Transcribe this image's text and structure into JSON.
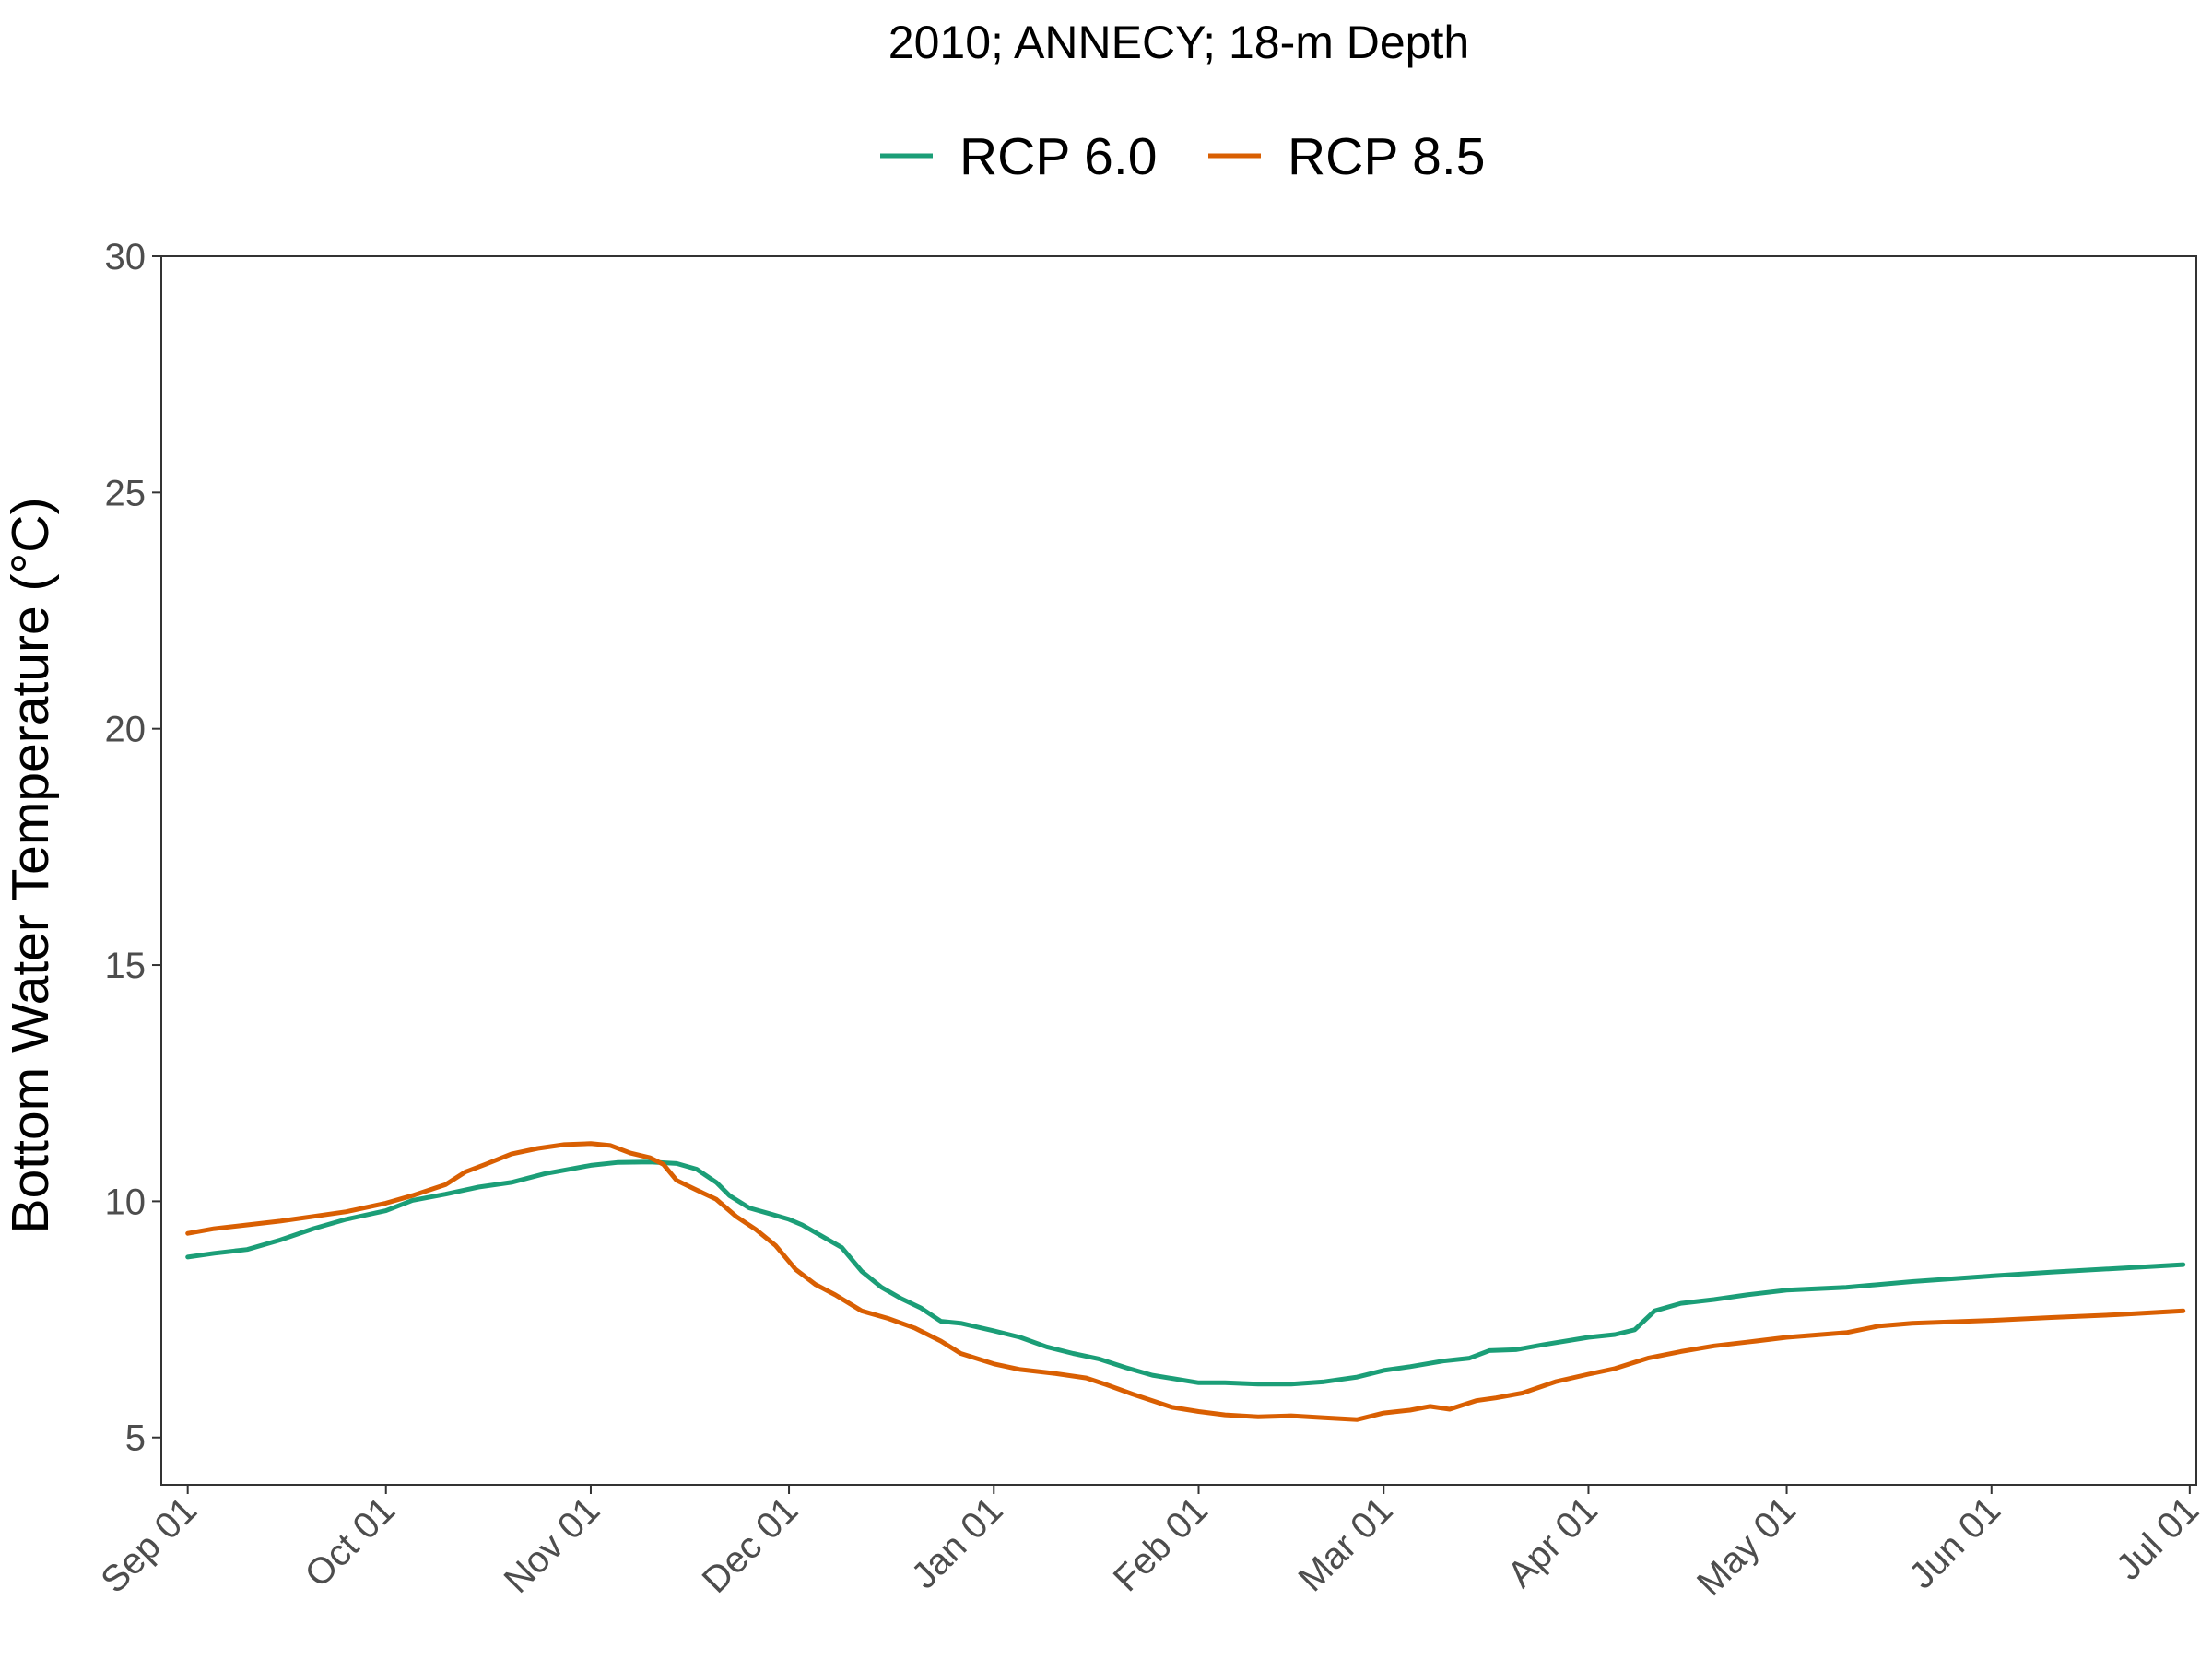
{
  "chart_data": {
    "type": "line",
    "title": "2010; ANNECY; 18-m Depth",
    "xlabel": "",
    "ylabel": "Bottom Water Temperature (°C)",
    "ylim": [
      4,
      30
    ],
    "xlim": [
      "2010-08-28",
      "2011-07-02"
    ],
    "y_ticks": [
      5,
      10,
      15,
      20,
      25,
      30
    ],
    "x_ticks": [
      {
        "date": "2010-09-01",
        "label": "Sep 01"
      },
      {
        "date": "2010-10-01",
        "label": "Oct 01"
      },
      {
        "date": "2010-11-01",
        "label": "Nov 01"
      },
      {
        "date": "2010-12-01",
        "label": "Dec 01"
      },
      {
        "date": "2011-01-01",
        "label": "Jan 01"
      },
      {
        "date": "2011-02-01",
        "label": "Feb 01"
      },
      {
        "date": "2011-03-01",
        "label": "Mar 01"
      },
      {
        "date": "2011-04-01",
        "label": "Apr 01"
      },
      {
        "date": "2011-05-01",
        "label": "May 01"
      },
      {
        "date": "2011-06-01",
        "label": "Jun 01"
      },
      {
        "date": "2011-07-01",
        "label": "Jul 01"
      }
    ],
    "grid": false,
    "legend_position": "top",
    "series": [
      {
        "name": "RCP 6.0",
        "color": "#1b9e77",
        "points": [
          [
            "2010-09-01",
            8.82
          ],
          [
            "2010-09-05",
            8.9
          ],
          [
            "2010-09-10",
            8.98
          ],
          [
            "2010-09-15",
            9.18
          ],
          [
            "2010-09-20",
            9.42
          ],
          [
            "2010-09-25",
            9.62
          ],
          [
            "2010-10-01",
            9.8
          ],
          [
            "2010-10-05",
            10.02
          ],
          [
            "2010-10-10",
            10.15
          ],
          [
            "2010-10-15",
            10.3
          ],
          [
            "2010-10-20",
            10.4
          ],
          [
            "2010-10-25",
            10.58
          ],
          [
            "2010-11-01",
            10.76
          ],
          [
            "2010-11-05",
            10.82
          ],
          [
            "2010-11-10",
            10.83
          ],
          [
            "2010-11-14",
            10.8
          ],
          [
            "2010-11-17",
            10.68
          ],
          [
            "2010-11-20",
            10.4
          ],
          [
            "2010-11-22",
            10.12
          ],
          [
            "2010-11-25",
            9.86
          ],
          [
            "2010-11-28",
            9.74
          ],
          [
            "2010-12-01",
            9.62
          ],
          [
            "2010-12-03",
            9.5
          ],
          [
            "2010-12-06",
            9.26
          ],
          [
            "2010-12-09",
            9.02
          ],
          [
            "2010-12-12",
            8.52
          ],
          [
            "2010-12-15",
            8.18
          ],
          [
            "2010-12-18",
            7.94
          ],
          [
            "2010-12-21",
            7.74
          ],
          [
            "2010-12-24",
            7.46
          ],
          [
            "2010-12-27",
            7.42
          ],
          [
            "2011-01-01",
            7.26
          ],
          [
            "2011-01-05",
            7.12
          ],
          [
            "2011-01-09",
            6.92
          ],
          [
            "2011-01-13",
            6.78
          ],
          [
            "2011-01-17",
            6.66
          ],
          [
            "2011-01-21",
            6.48
          ],
          [
            "2011-01-25",
            6.32
          ],
          [
            "2011-02-01",
            6.16
          ],
          [
            "2011-02-05",
            6.16
          ],
          [
            "2011-02-10",
            6.13
          ],
          [
            "2011-02-15",
            6.13
          ],
          [
            "2011-02-20",
            6.18
          ],
          [
            "2011-02-25",
            6.28
          ],
          [
            "2011-03-01",
            6.42
          ],
          [
            "2011-03-05",
            6.5
          ],
          [
            "2011-03-10",
            6.62
          ],
          [
            "2011-03-14",
            6.68
          ],
          [
            "2011-03-17",
            6.84
          ],
          [
            "2011-03-21",
            6.86
          ],
          [
            "2011-03-25",
            6.96
          ],
          [
            "2011-04-01",
            7.12
          ],
          [
            "2011-04-05",
            7.18
          ],
          [
            "2011-04-08",
            7.28
          ],
          [
            "2011-04-11",
            7.68
          ],
          [
            "2011-04-15",
            7.84
          ],
          [
            "2011-04-20",
            7.92
          ],
          [
            "2011-04-25",
            8.02
          ],
          [
            "2011-05-01",
            8.12
          ],
          [
            "2011-05-10",
            8.18
          ],
          [
            "2011-05-20",
            8.3
          ],
          [
            "2011-06-01",
            8.42
          ],
          [
            "2011-06-10",
            8.5
          ],
          [
            "2011-06-20",
            8.58
          ],
          [
            "2011-06-30",
            8.66
          ]
        ]
      },
      {
        "name": "RCP 8.5",
        "color": "#d95f02",
        "points": [
          [
            "2010-09-01",
            9.32
          ],
          [
            "2010-09-05",
            9.42
          ],
          [
            "2010-09-10",
            9.5
          ],
          [
            "2010-09-15",
            9.58
          ],
          [
            "2010-09-20",
            9.68
          ],
          [
            "2010-09-25",
            9.78
          ],
          [
            "2010-10-01",
            9.96
          ],
          [
            "2010-10-05",
            10.12
          ],
          [
            "2010-10-10",
            10.35
          ],
          [
            "2010-10-13",
            10.62
          ],
          [
            "2010-10-16",
            10.78
          ],
          [
            "2010-10-20",
            11.0
          ],
          [
            "2010-10-24",
            11.12
          ],
          [
            "2010-10-28",
            11.2
          ],
          [
            "2010-11-01",
            11.22
          ],
          [
            "2010-11-04",
            11.18
          ],
          [
            "2010-11-07",
            11.02
          ],
          [
            "2010-11-10",
            10.92
          ],
          [
            "2010-11-12",
            10.78
          ],
          [
            "2010-11-14",
            10.44
          ],
          [
            "2010-11-17",
            10.24
          ],
          [
            "2010-11-20",
            10.04
          ],
          [
            "2010-11-23",
            9.68
          ],
          [
            "2010-11-26",
            9.4
          ],
          [
            "2010-11-29",
            9.06
          ],
          [
            "2010-12-02",
            8.56
          ],
          [
            "2010-12-05",
            8.24
          ],
          [
            "2010-12-08",
            8.02
          ],
          [
            "2010-12-12",
            7.68
          ],
          [
            "2010-12-16",
            7.52
          ],
          [
            "2010-12-20",
            7.32
          ],
          [
            "2010-12-24",
            7.04
          ],
          [
            "2010-12-27",
            6.78
          ],
          [
            "2011-01-01",
            6.56
          ],
          [
            "2011-01-05",
            6.44
          ],
          [
            "2011-01-10",
            6.36
          ],
          [
            "2011-01-15",
            6.26
          ],
          [
            "2011-01-18",
            6.12
          ],
          [
            "2011-01-22",
            5.92
          ],
          [
            "2011-01-25",
            5.78
          ],
          [
            "2011-01-28",
            5.64
          ],
          [
            "2011-02-01",
            5.55
          ],
          [
            "2011-02-05",
            5.48
          ],
          [
            "2011-02-10",
            5.44
          ],
          [
            "2011-02-15",
            5.46
          ],
          [
            "2011-02-20",
            5.42
          ],
          [
            "2011-02-25",
            5.38
          ],
          [
            "2011-03-01",
            5.52
          ],
          [
            "2011-03-05",
            5.58
          ],
          [
            "2011-03-08",
            5.66
          ],
          [
            "2011-03-11",
            5.6
          ],
          [
            "2011-03-15",
            5.78
          ],
          [
            "2011-03-18",
            5.84
          ],
          [
            "2011-03-22",
            5.94
          ],
          [
            "2011-03-27",
            6.18
          ],
          [
            "2011-04-01",
            6.34
          ],
          [
            "2011-04-05",
            6.46
          ],
          [
            "2011-04-10",
            6.68
          ],
          [
            "2011-04-15",
            6.82
          ],
          [
            "2011-04-20",
            6.94
          ],
          [
            "2011-04-25",
            7.02
          ],
          [
            "2011-05-01",
            7.12
          ],
          [
            "2011-05-10",
            7.22
          ],
          [
            "2011-05-15",
            7.36
          ],
          [
            "2011-05-20",
            7.42
          ],
          [
            "2011-06-01",
            7.48
          ],
          [
            "2011-06-10",
            7.54
          ],
          [
            "2011-06-20",
            7.6
          ],
          [
            "2011-06-30",
            7.68
          ]
        ]
      }
    ]
  }
}
